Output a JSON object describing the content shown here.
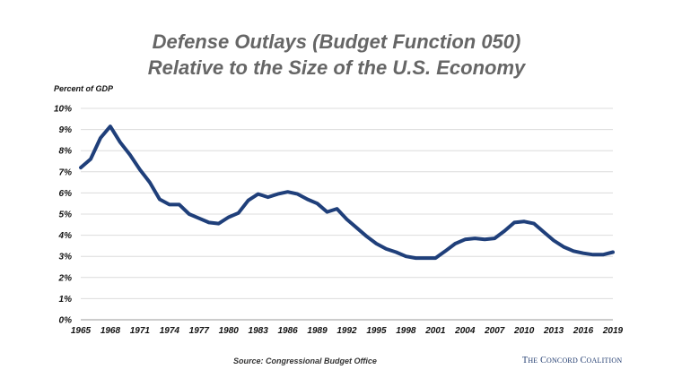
{
  "header": {
    "title_line1": "Defense Outlays (Budget Function 050)",
    "title_line2": "Relative to the Size of the U.S. Economy"
  },
  "footer": {
    "source": "Source: Congressional Budget Office",
    "brand_the": "T",
    "brand_he": "HE",
    "brand_c": "C",
    "brand_oncord": "ONCORD",
    "brand_c2": "C",
    "brand_oalition": "OALITION"
  },
  "chart_data": {
    "type": "line",
    "title": "Defense Outlays (Budget Function 050) Relative to the Size of the U.S. Economy",
    "ylabel": "Percent of GDP",
    "xlabel": "",
    "ylim": [
      0,
      10
    ],
    "xlim": [
      1965,
      2019
    ],
    "grid": true,
    "line_color": "#1f3f7a",
    "y_ticks": [
      "0%",
      "1%",
      "2%",
      "3%",
      "4%",
      "5%",
      "6%",
      "7%",
      "8%",
      "9%",
      "10%"
    ],
    "x_ticks": [
      "1965",
      "1968",
      "1971",
      "1974",
      "1977",
      "1980",
      "1983",
      "1986",
      "1989",
      "1992",
      "1995",
      "1998",
      "2001",
      "2004",
      "2007",
      "2010",
      "2013",
      "2016",
      "2019"
    ],
    "series": [
      {
        "x": [
          1965,
          1966,
          1967,
          1968,
          1969,
          1970,
          1971,
          1972,
          1973,
          1974,
          1975,
          1976,
          1977,
          1978,
          1979,
          1980,
          1981,
          1982,
          1983,
          1984,
          1985,
          1986,
          1987,
          1988,
          1989,
          1990,
          1991,
          1992,
          1993,
          1994,
          1995,
          1996,
          1997,
          1998,
          1999,
          2000,
          2001,
          2002,
          2003,
          2004,
          2005,
          2006,
          2007,
          2008,
          2009,
          2010,
          2011,
          2012,
          2013,
          2014,
          2015,
          2016,
          2017,
          2018,
          2019
        ],
        "values": [
          7.2,
          7.6,
          8.6,
          9.15,
          8.4,
          7.8,
          7.1,
          6.5,
          5.7,
          5.45,
          5.45,
          5.0,
          4.8,
          4.6,
          4.55,
          4.85,
          5.05,
          5.65,
          5.95,
          5.8,
          5.95,
          6.05,
          5.95,
          5.7,
          5.5,
          5.1,
          5.25,
          4.75,
          4.35,
          3.95,
          3.6,
          3.35,
          3.2,
          3.0,
          2.92,
          2.92,
          2.92,
          3.25,
          3.6,
          3.8,
          3.85,
          3.8,
          3.85,
          4.2,
          4.6,
          4.65,
          4.55,
          4.15,
          3.75,
          3.45,
          3.25,
          3.15,
          3.08,
          3.08,
          3.2
        ]
      }
    ]
  }
}
